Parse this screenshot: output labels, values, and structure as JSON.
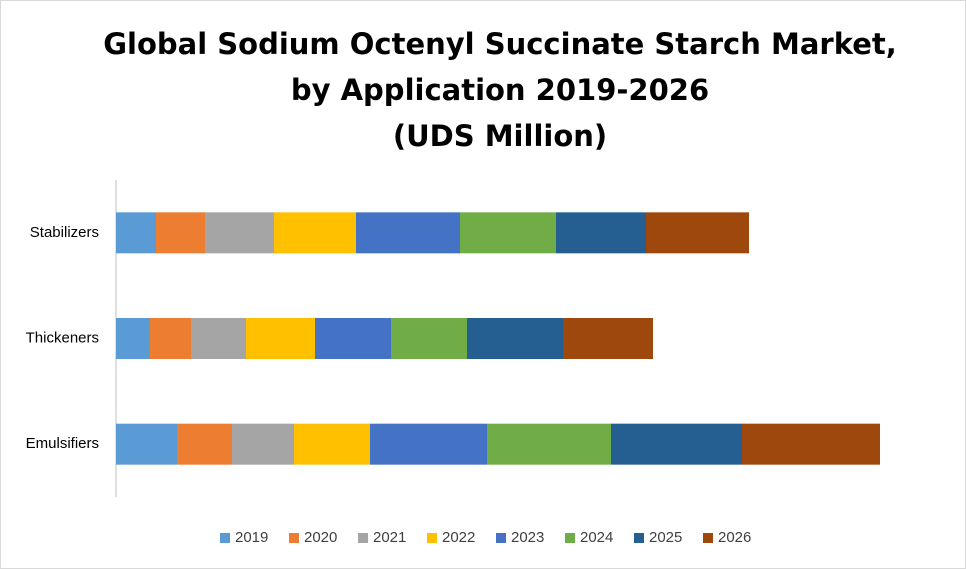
{
  "chart_data": {
    "type": "stacked-bar-horizontal",
    "title": [
      "Global  Sodium Octenyl Succinate Starch Market,",
      "by Application 2019-2026",
      "(UDS Million)"
    ],
    "categories": [
      "Stabilizers",
      "Thickeners",
      "Emulsifiers"
    ],
    "xlim": [
      0,
      800
    ],
    "series": [
      {
        "name": "2019",
        "color": "#5b9bd5",
        "values": [
          40,
          34,
          61
        ]
      },
      {
        "name": "2020",
        "color": "#ed7d31",
        "values": [
          49,
          41,
          55
        ]
      },
      {
        "name": "2021",
        "color": "#a5a5a5",
        "values": [
          69,
          55,
          62
        ]
      },
      {
        "name": "2022",
        "color": "#ffc000",
        "values": [
          82,
          69,
          76
        ]
      },
      {
        "name": "2023",
        "color": "#4472c4",
        "values": [
          104,
          76,
          117
        ]
      },
      {
        "name": "2024",
        "color": "#70ad47",
        "values": [
          96,
          76,
          124
        ]
      },
      {
        "name": "2025",
        "color": "#255e91",
        "values": [
          90,
          96,
          131
        ]
      },
      {
        "name": "2026",
        "color": "#9e480e",
        "values": [
          103,
          90,
          138
        ]
      }
    ]
  }
}
